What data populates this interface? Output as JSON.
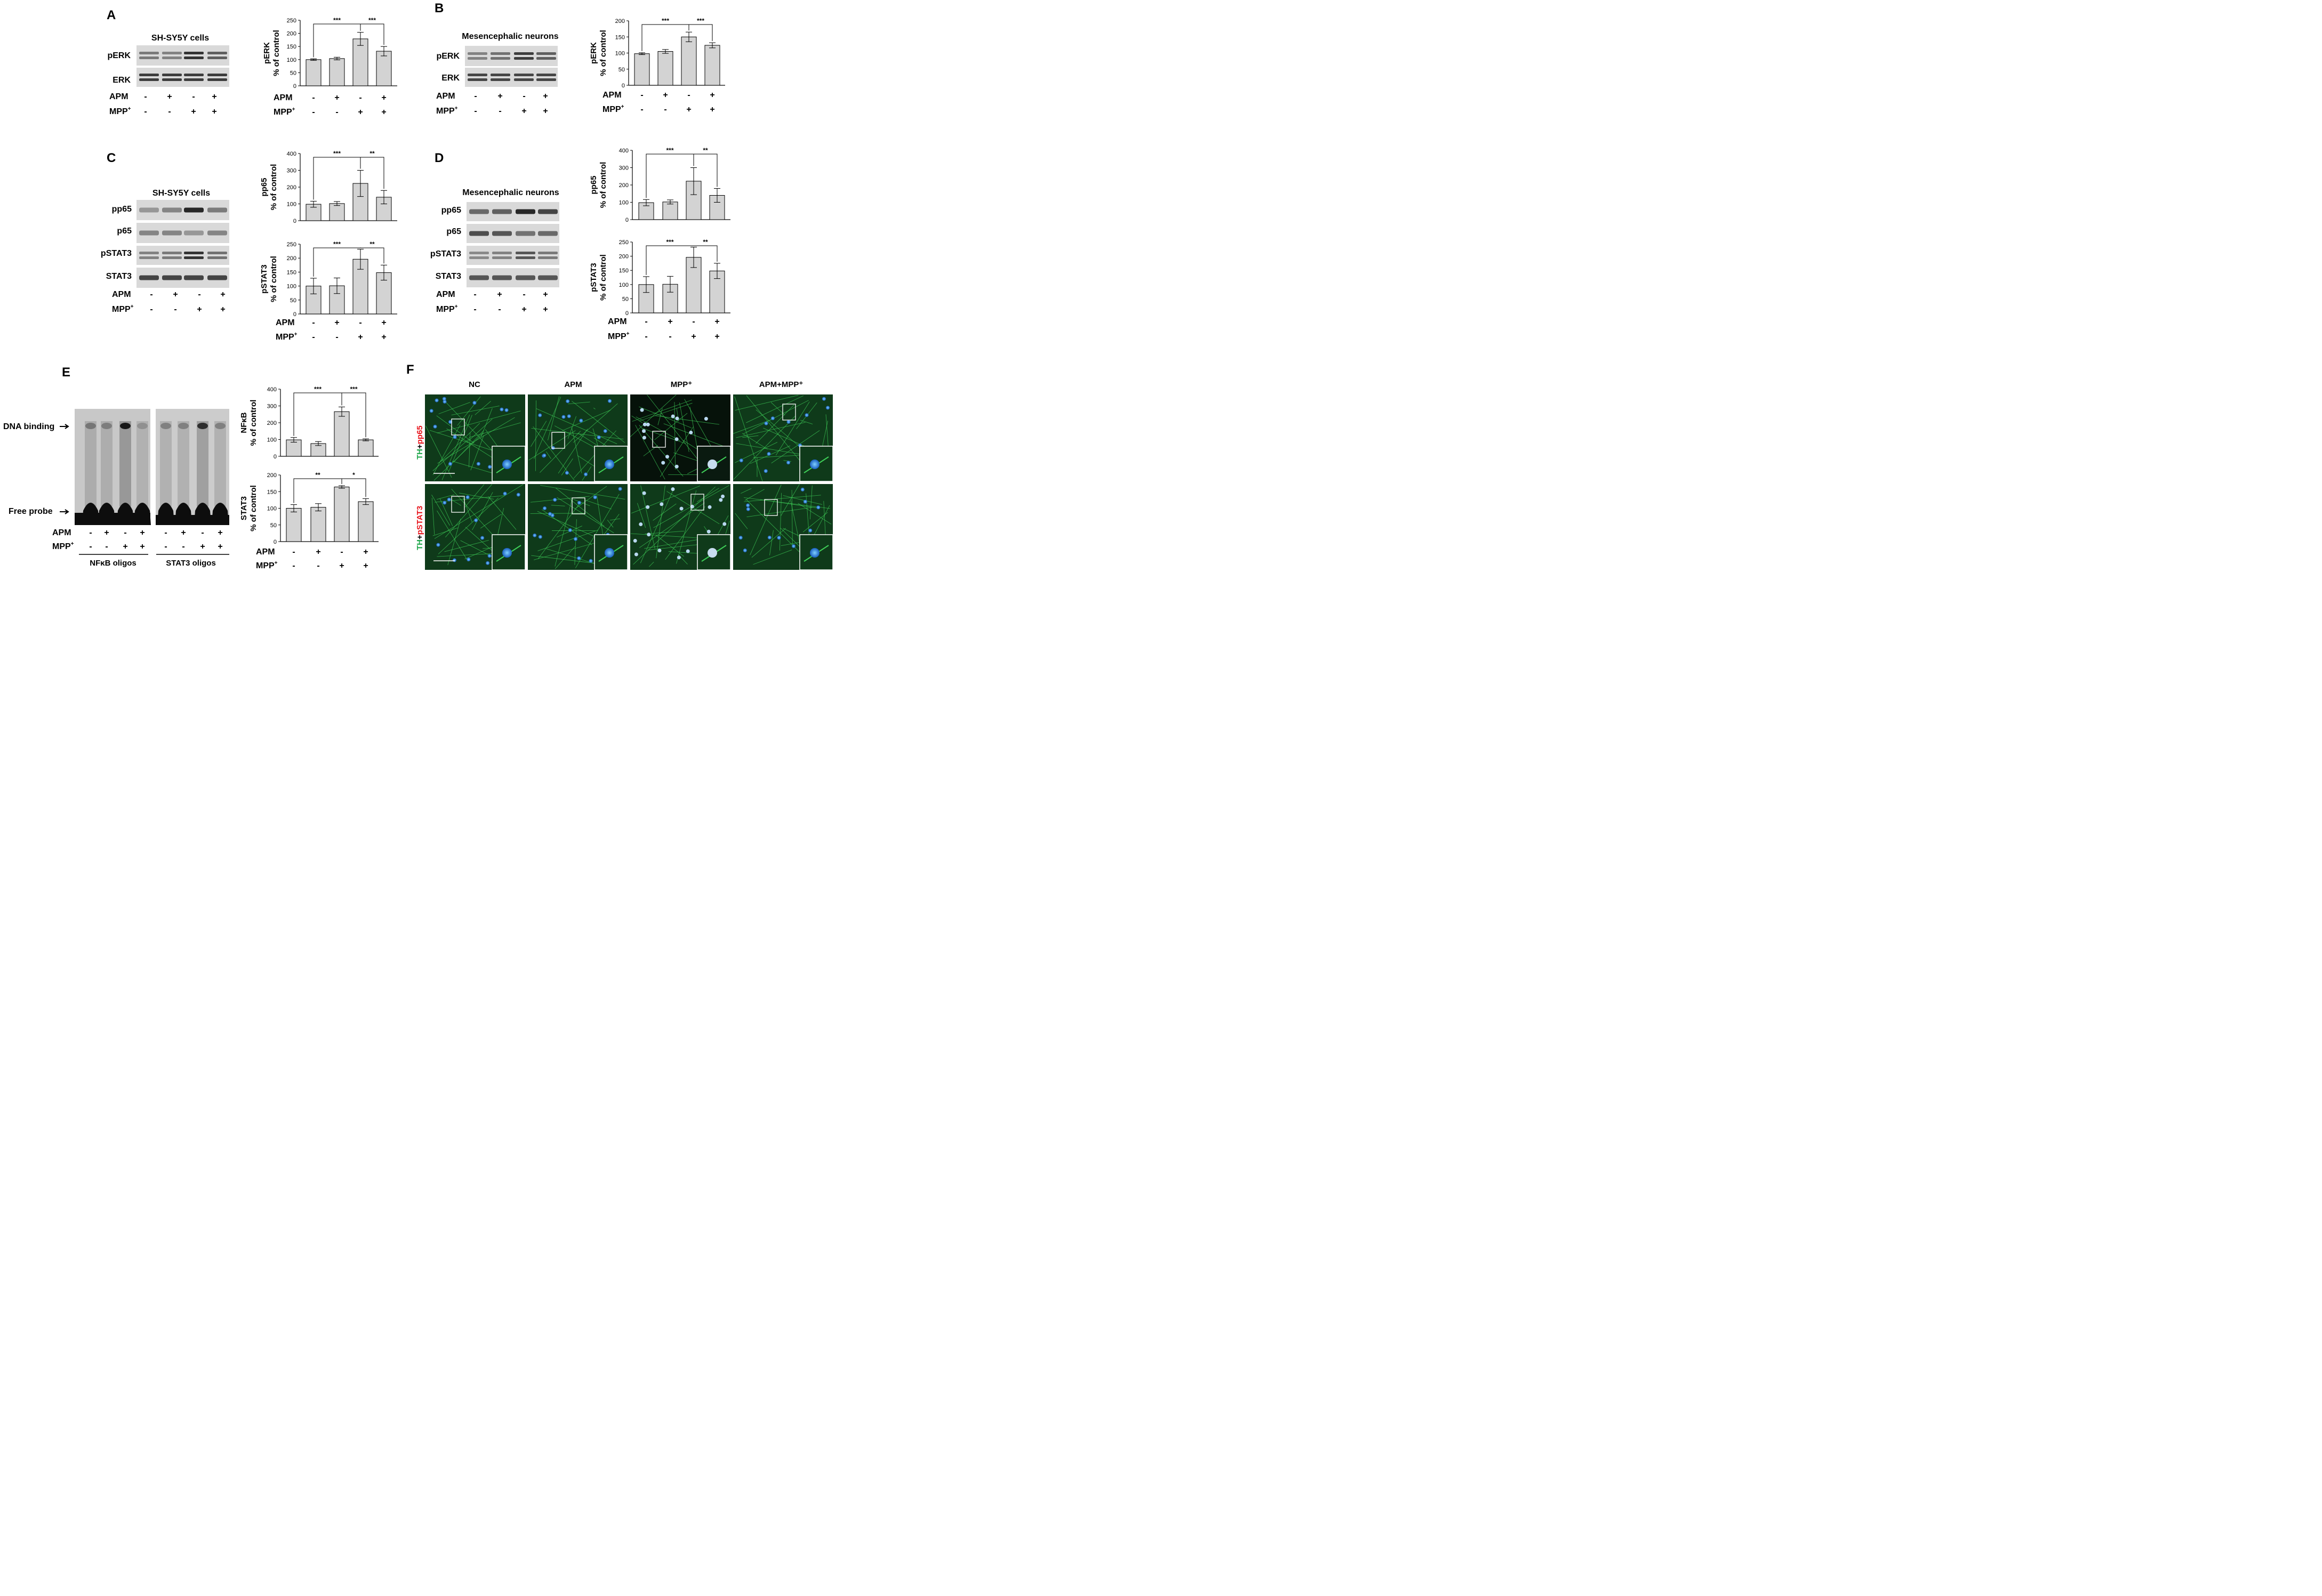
{
  "labels": {
    "apm": "APM",
    "mpp": "MPP",
    "mpp_sup": "+",
    "minus": "-",
    "plus": "+",
    "pct_control": "% of control",
    "sig3": "***",
    "sig2": "**",
    "sig1": "*"
  },
  "treatment_signs": {
    "APM": [
      "-",
      "+",
      "-",
      "+"
    ],
    "MPP": [
      "-",
      "-",
      "+",
      "+"
    ]
  },
  "panels": [
    {
      "letter": "A",
      "cell_title": "SH-SY5Y cells",
      "blot_labels": [
        "pERK",
        "ERK"
      ]
    },
    {
      "letter": "B",
      "cell_title": "Mesencephalic neurons",
      "blot_labels": [
        "pERK",
        "ERK"
      ]
    },
    {
      "letter": "C",
      "cell_title": "SH-SY5Y cells",
      "blot_labels": [
        "pp65",
        "p65",
        "pSTAT3",
        "STAT3"
      ]
    },
    {
      "letter": "D",
      "cell_title": "Mesencephalic neurons",
      "blot_labels": [
        "pp65",
        "p65",
        "pSTAT3",
        "STAT3"
      ]
    },
    {
      "letter": "E",
      "emsa_labels": {
        "dna_binding": "DNA binding",
        "free_probe": "Free probe",
        "nfkb_oligos": "NFκB oligos",
        "stat3_oligos": "STAT3 oligos"
      }
    },
    {
      "letter": "F",
      "columns": [
        "NC",
        "APM",
        "MPP⁺",
        "APM+MPP⁺"
      ],
      "row_labels": [
        [
          "TH",
          "+",
          "pp65"
        ],
        [
          "TH",
          "+",
          "pSTAT3"
        ]
      ]
    }
  ],
  "colors": {
    "bar_fill": "#d3d3d3",
    "green": "#1fa64a",
    "red": "#e8141c",
    "blot_bg": "#d9d9d9",
    "micro_bg": "#0b1a10"
  },
  "chart_data": [
    {
      "id": "A",
      "type": "bar",
      "ylabel": "pERK",
      "ylim": [
        0,
        250
      ],
      "yticks": [
        0,
        50,
        100,
        150,
        200,
        250
      ],
      "values": [
        100,
        104,
        179,
        132
      ],
      "errors": [
        3,
        5,
        25,
        18
      ],
      "sig": [
        {
          "from": 0,
          "to": 2,
          "label": "***"
        },
        {
          "from": 2,
          "to": 3,
          "label": "***"
        }
      ]
    },
    {
      "id": "B",
      "type": "bar",
      "ylabel": "pERK",
      "ylim": [
        0,
        200
      ],
      "yticks": [
        0,
        50,
        100,
        150,
        200
      ],
      "values": [
        98,
        105,
        150,
        124
      ],
      "errors": [
        3,
        6,
        15,
        8
      ],
      "sig": [
        {
          "from": 0,
          "to": 2,
          "label": "***"
        },
        {
          "from": 2,
          "to": 3,
          "label": "***"
        }
      ]
    },
    {
      "id": "C1",
      "type": "bar",
      "ylabel": "pp65",
      "ylim": [
        0,
        400
      ],
      "yticks": [
        0,
        100,
        200,
        300,
        400
      ],
      "values": [
        98,
        102,
        222,
        140
      ],
      "errors": [
        18,
        12,
        78,
        40
      ],
      "sig": [
        {
          "from": 0,
          "to": 2,
          "label": "***"
        },
        {
          "from": 2,
          "to": 3,
          "label": "**"
        }
      ]
    },
    {
      "id": "C2",
      "type": "bar",
      "ylabel": "pSTAT3",
      "ylim": [
        0,
        250
      ],
      "yticks": [
        0,
        50,
        100,
        150,
        200,
        250
      ],
      "values": [
        100,
        101,
        196,
        148
      ],
      "errors": [
        28,
        28,
        36,
        27
      ],
      "sig": [
        {
          "from": 0,
          "to": 2,
          "label": "***"
        },
        {
          "from": 2,
          "to": 3,
          "label": "**"
        }
      ]
    },
    {
      "id": "D1",
      "type": "bar",
      "ylabel": "pp65",
      "ylim": [
        0,
        400
      ],
      "yticks": [
        0,
        100,
        200,
        300,
        400
      ],
      "values": [
        98,
        102,
        222,
        140
      ],
      "errors": [
        18,
        12,
        78,
        40
      ],
      "sig": [
        {
          "from": 0,
          "to": 2,
          "label": "***"
        },
        {
          "from": 2,
          "to": 3,
          "label": "**"
        }
      ]
    },
    {
      "id": "D2",
      "type": "bar",
      "ylabel": "pSTAT3",
      "ylim": [
        0,
        250
      ],
      "yticks": [
        0,
        50,
        100,
        150,
        200,
        250
      ],
      "values": [
        100,
        101,
        196,
        148
      ],
      "errors": [
        28,
        28,
        36,
        27
      ],
      "sig": [
        {
          "from": 0,
          "to": 2,
          "label": "***"
        },
        {
          "from": 2,
          "to": 3,
          "label": "**"
        }
      ]
    },
    {
      "id": "E1",
      "type": "bar",
      "ylabel": "NFκB",
      "ylim": [
        0,
        400
      ],
      "yticks": [
        0,
        100,
        200,
        300,
        400
      ],
      "values": [
        98,
        76,
        266,
        98
      ],
      "errors": [
        14,
        12,
        28,
        6
      ],
      "sig": [
        {
          "from": 0,
          "to": 2,
          "label": "***"
        },
        {
          "from": 2,
          "to": 3,
          "label": "***"
        }
      ]
    },
    {
      "id": "E2",
      "type": "bar",
      "ylabel": "STAT3",
      "ylim": [
        0,
        200
      ],
      "yticks": [
        0,
        50,
        100,
        150,
        200
      ],
      "values": [
        100,
        103,
        164,
        120
      ],
      "errors": [
        11,
        11,
        4,
        9
      ],
      "sig": [
        {
          "from": 0,
          "to": 2,
          "label": "**"
        },
        {
          "from": 2,
          "to": 3,
          "label": "*"
        }
      ]
    }
  ]
}
